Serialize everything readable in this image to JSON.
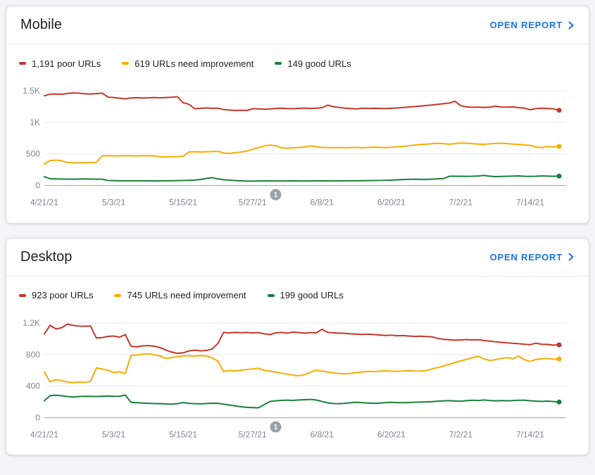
{
  "colors": {
    "poor": "#c5362b",
    "needs_improvement": "#f9ab00",
    "good": "#188038",
    "link": "#1a73e8",
    "annotation_marker": "#9aa0a6"
  },
  "cards": [
    {
      "title": "Mobile",
      "open_report_label": "OPEN REPORT",
      "legend": [
        {
          "label": "1,191 poor URLs",
          "color": "#c5362b"
        },
        {
          "label": "619 URLs need improvement",
          "color": "#f9ab00"
        },
        {
          "label": "149 good URLs",
          "color": "#188038"
        }
      ]
    },
    {
      "title": "Desktop",
      "open_report_label": "OPEN REPORT",
      "legend": [
        {
          "label": "923 poor URLs",
          "color": "#c5362b"
        },
        {
          "label": "745 URLs need improvement",
          "color": "#f9ab00"
        },
        {
          "label": "199 good URLs",
          "color": "#188038"
        }
      ]
    }
  ],
  "chart_data": [
    {
      "type": "line",
      "title": "Mobile",
      "ylim": [
        0,
        1500
      ],
      "y_ticks": [
        {
          "value": 0,
          "label": "0"
        },
        {
          "value": 500,
          "label": "500"
        },
        {
          "value": 1000,
          "label": "1K"
        },
        {
          "value": 1500,
          "label": "1.5K"
        }
      ],
      "x_ticks": [
        {
          "day": 0,
          "label": "4/21/21"
        },
        {
          "day": 12,
          "label": "5/3/21"
        },
        {
          "day": 24,
          "label": "5/15/21"
        },
        {
          "day": 36,
          "label": "5/27/21"
        },
        {
          "day": 48,
          "label": "6/8/21"
        },
        {
          "day": 60,
          "label": "6/20/21"
        },
        {
          "day": 72,
          "label": "7/2/21"
        },
        {
          "day": 84,
          "label": "7/14/21"
        }
      ],
      "annotation": {
        "day": 40,
        "label": "1"
      },
      "series": [
        {
          "name": "poor URLs",
          "current": 1191,
          "color": "#c5362b",
          "values": [
            1420,
            1445,
            1448,
            1442,
            1458,
            1465,
            1462,
            1452,
            1448,
            1455,
            1462,
            1400,
            1392,
            1382,
            1372,
            1385,
            1390,
            1385,
            1388,
            1392,
            1388,
            1392,
            1398,
            1405,
            1310,
            1285,
            1215,
            1222,
            1228,
            1222,
            1225,
            1202,
            1195,
            1188,
            1192,
            1188,
            1215,
            1212,
            1208,
            1212,
            1220,
            1225,
            1218,
            1215,
            1222,
            1226,
            1220,
            1225,
            1232,
            1272,
            1248,
            1235,
            1225,
            1218,
            1212,
            1225,
            1220,
            1222,
            1220,
            1218,
            1222,
            1228,
            1235,
            1242,
            1250,
            1258,
            1266,
            1275,
            1285,
            1295,
            1305,
            1332,
            1262,
            1245,
            1238,
            1242,
            1235,
            1240,
            1255,
            1242,
            1240,
            1245,
            1232,
            1225,
            1200,
            1218,
            1225,
            1220,
            1212,
            1191
          ]
        },
        {
          "name": "URLs need improvement",
          "current": 619,
          "color": "#f9ab00",
          "values": [
            340,
            395,
            402,
            392,
            365,
            360,
            358,
            362,
            365,
            368,
            470,
            472,
            468,
            470,
            472,
            470,
            468,
            472,
            470,
            468,
            455,
            452,
            455,
            458,
            462,
            530,
            535,
            530,
            534,
            538,
            542,
            515,
            508,
            520,
            530,
            545,
            570,
            600,
            625,
            640,
            630,
            598,
            592,
            596,
            602,
            608,
            628,
            612,
            605,
            600,
            598,
            602,
            596,
            600,
            605,
            598,
            602,
            608,
            605,
            600,
            605,
            612,
            620,
            630,
            640,
            648,
            655,
            662,
            668,
            662,
            655,
            665,
            672,
            668,
            662,
            656,
            652,
            660,
            666,
            670,
            662,
            656,
            650,
            642,
            636,
            612,
            600,
            618,
            610,
            619
          ]
        },
        {
          "name": "good URLs",
          "current": 149,
          "color": "#188038",
          "values": [
            140,
            108,
            104,
            102,
            102,
            100,
            102,
            104,
            102,
            100,
            100,
            80,
            78,
            76,
            75,
            76,
            75,
            74,
            73,
            72,
            73,
            75,
            76,
            78,
            80,
            82,
            85,
            95,
            112,
            125,
            105,
            92,
            85,
            78,
            73,
            70,
            70,
            71,
            72,
            73,
            72,
            71,
            72,
            73,
            72,
            71,
            72,
            73,
            74,
            73,
            72,
            73,
            74,
            75,
            76,
            77,
            78,
            79,
            80,
            82,
            86,
            90,
            94,
            98,
            100,
            98,
            96,
            100,
            105,
            110,
            145,
            148,
            146,
            144,
            147,
            150,
            160,
            148,
            141,
            143,
            146,
            149,
            151,
            147,
            144,
            147,
            151,
            149,
            147,
            149
          ]
        }
      ]
    },
    {
      "type": "line",
      "title": "Desktop",
      "ylim": [
        0,
        1200
      ],
      "y_ticks": [
        {
          "value": 0,
          "label": "0"
        },
        {
          "value": 400,
          "label": "400"
        },
        {
          "value": 800,
          "label": "800"
        },
        {
          "value": 1200,
          "label": "1.2K"
        }
      ],
      "x_ticks": [
        {
          "day": 0,
          "label": "4/21/21"
        },
        {
          "day": 12,
          "label": "5/3/21"
        },
        {
          "day": 24,
          "label": "5/15/21"
        },
        {
          "day": 36,
          "label": "5/27/21"
        },
        {
          "day": 48,
          "label": "6/8/21"
        },
        {
          "day": 60,
          "label": "6/20/21"
        },
        {
          "day": 72,
          "label": "7/2/21"
        },
        {
          "day": 84,
          "label": "7/14/21"
        }
      ],
      "annotation": {
        "day": 40,
        "label": "1"
      },
      "series": [
        {
          "name": "poor URLs",
          "current": 923,
          "color": "#c5362b",
          "values": [
            1060,
            1170,
            1125,
            1140,
            1185,
            1170,
            1160,
            1158,
            1162,
            1010,
            1015,
            1030,
            1035,
            1020,
            1052,
            905,
            898,
            910,
            914,
            906,
            888,
            858,
            832,
            815,
            822,
            845,
            855,
            848,
            852,
            870,
            940,
            1080,
            1075,
            1080,
            1076,
            1080,
            1074,
            1078,
            1062,
            1052,
            1075,
            1080,
            1070,
            1085,
            1078,
            1072,
            1078,
            1074,
            1120,
            1080,
            1075,
            1072,
            1068,
            1062,
            1058,
            1055,
            1058,
            1052,
            1048,
            1042,
            1045,
            1038,
            1040,
            1035,
            1030,
            1032,
            1028,
            1025,
            1005,
            992,
            988,
            982,
            985,
            990,
            985,
            988,
            978,
            970,
            962,
            955,
            948,
            942,
            938,
            930,
            925,
            945,
            930,
            928,
            920,
            923
          ]
        },
        {
          "name": "URLs need improvement",
          "current": 745,
          "color": "#f9ab00",
          "values": [
            580,
            455,
            482,
            470,
            452,
            445,
            452,
            448,
            462,
            630,
            618,
            600,
            572,
            582,
            560,
            790,
            795,
            805,
            810,
            798,
            782,
            752,
            762,
            775,
            782,
            786,
            780,
            788,
            782,
            760,
            718,
            585,
            598,
            592,
            602,
            610,
            618,
            628,
            600,
            588,
            580,
            565,
            552,
            540,
            532,
            545,
            575,
            602,
            590,
            578,
            568,
            560,
            556,
            562,
            572,
            580,
            588,
            584,
            590,
            594,
            590,
            587,
            592,
            596,
            592,
            590,
            596,
            618,
            636,
            655,
            675,
            700,
            720,
            740,
            760,
            780,
            745,
            725,
            735,
            750,
            762,
            748,
            780,
            735,
            712,
            738,
            748,
            752,
            742,
            745
          ]
        },
        {
          "name": "good URLs",
          "current": 199,
          "color": "#188038",
          "values": [
            215,
            280,
            285,
            278,
            268,
            262,
            268,
            272,
            270,
            268,
            272,
            275,
            270,
            272,
            288,
            195,
            190,
            186,
            182,
            180,
            178,
            175,
            172,
            178,
            192,
            182,
            178,
            176,
            180,
            184,
            182,
            172,
            162,
            150,
            140,
            132,
            128,
            125,
            165,
            205,
            215,
            220,
            222,
            220,
            225,
            228,
            232,
            225,
            205,
            188,
            180,
            178,
            182,
            190,
            196,
            190,
            186,
            182,
            186,
            192,
            195,
            192,
            190,
            193,
            196,
            198,
            200,
            204,
            210,
            214,
            216,
            212,
            209,
            216,
            221,
            218,
            225,
            218,
            214,
            217,
            213,
            217,
            221,
            222,
            215,
            210,
            207,
            211,
            205,
            199
          ]
        }
      ]
    }
  ]
}
